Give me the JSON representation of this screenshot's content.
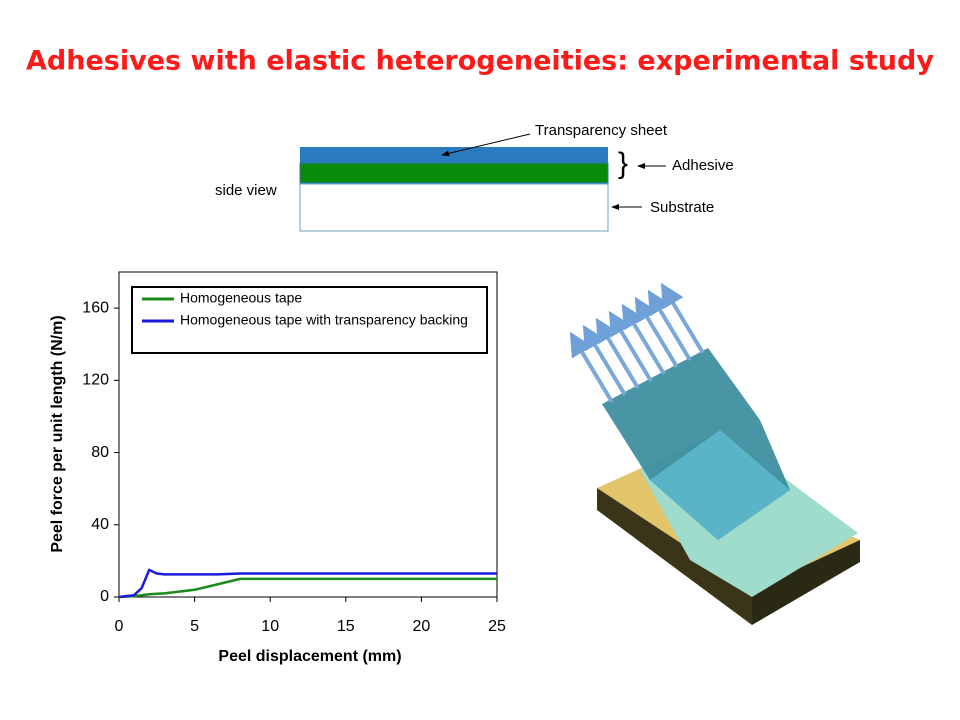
{
  "slide": {
    "title": "Adhesives with elastic heterogeneities: experimental study",
    "diagram": {
      "side_view": "side view",
      "transparency": "Transparency sheet",
      "adhesive": "Adhesive",
      "substrate": "Substrate"
    }
  },
  "chart_data": {
    "type": "line",
    "x_label": "Peel displacement (mm)",
    "y_label": "Peel force per unit length (N/m)",
    "x": [
      0,
      1,
      1.5,
      2,
      2.5,
      3,
      5,
      6.5,
      8,
      10,
      15,
      20,
      25
    ],
    "series": [
      {
        "name": "Homogeneous tape",
        "color": "#1a8a1a",
        "values": [
          0,
          0.5,
          1,
          1.5,
          1.8,
          2,
          4,
          7,
          10,
          10,
          10,
          10,
          10
        ]
      },
      {
        "name": "Homogeneous tape with transparency backing",
        "color": "#1a1adc",
        "values": [
          0,
          1,
          5,
          15,
          13,
          12.5,
          12.5,
          12.5,
          13,
          13,
          13,
          13,
          13
        ]
      }
    ],
    "xlim": [
      0,
      25
    ],
    "xticks": [
      0,
      5,
      10,
      15,
      20,
      25
    ],
    "ylim": [
      0,
      180
    ],
    "yticks": [
      0,
      40,
      80,
      120,
      160
    ],
    "legend": "upper left"
  }
}
